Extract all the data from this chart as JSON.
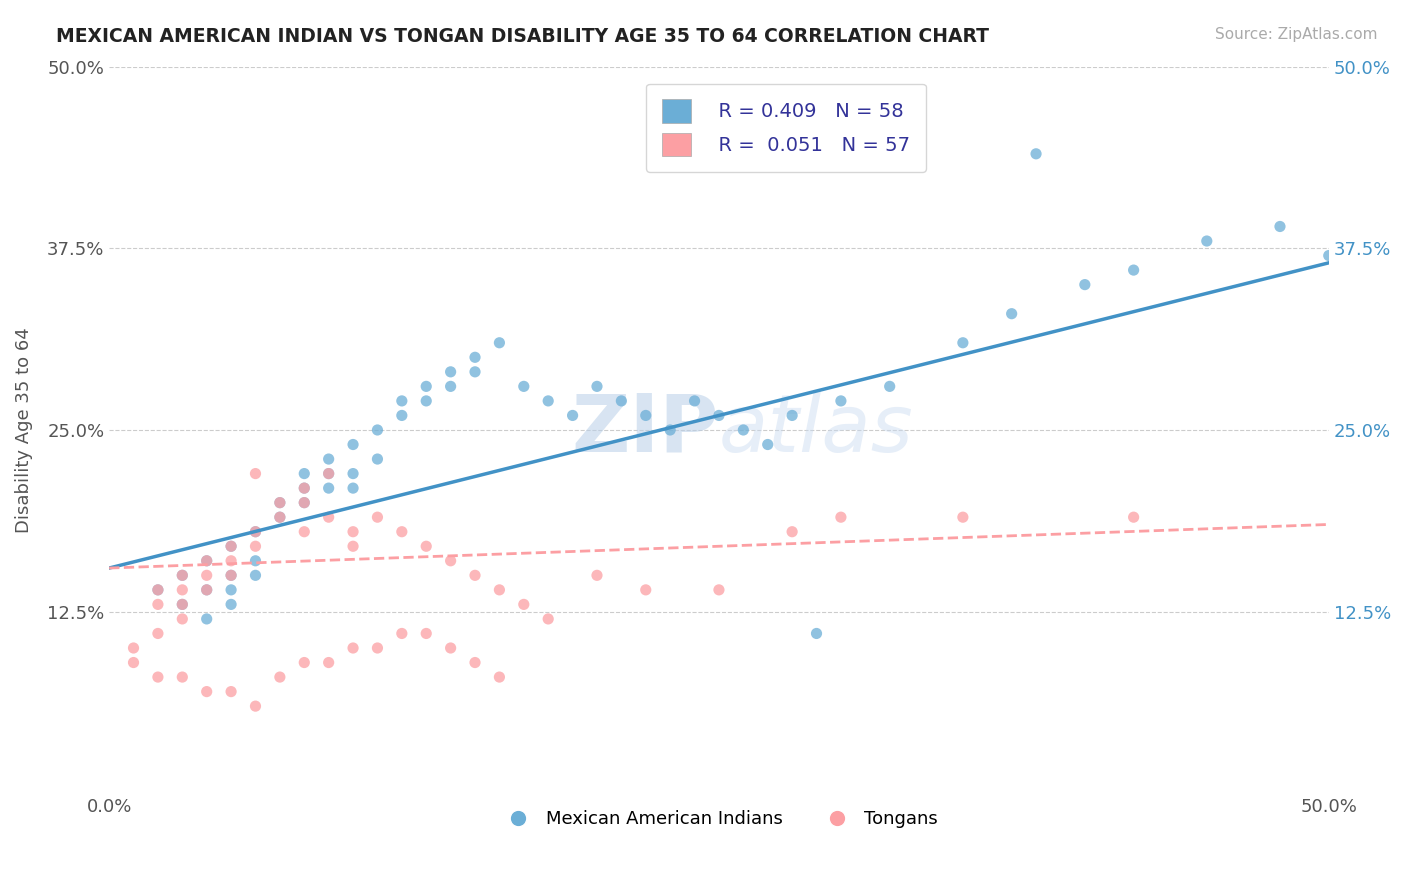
{
  "title": "MEXICAN AMERICAN INDIAN VS TONGAN DISABILITY AGE 35 TO 64 CORRELATION CHART",
  "source": "Source: ZipAtlas.com",
  "ylabel": "Disability Age 35 to 64",
  "xlim": [
    0.0,
    0.5
  ],
  "ylim": [
    0.0,
    0.5
  ],
  "xtick_labels": [
    "0.0%",
    "50.0%"
  ],
  "ytick_labels": [
    "12.5%",
    "25.0%",
    "37.5%",
    "50.0%"
  ],
  "ytick_positions": [
    0.125,
    0.25,
    0.375,
    0.5
  ],
  "grid_color": "#cccccc",
  "background_color": "#ffffff",
  "blue_color": "#6baed6",
  "pink_color": "#fc9fa3",
  "blue_line_color": "#4292c6",
  "legend_r_blue": "R = 0.409",
  "legend_n_blue": "N = 58",
  "legend_r_pink": "R =  0.051",
  "legend_n_pink": "N = 57",
  "legend_label_blue": "Mexican American Indians",
  "legend_label_pink": "Tongans",
  "watermark_zip": "ZIP",
  "watermark_atlas": "atlas",
  "blue_scatter_x": [
    0.02,
    0.03,
    0.03,
    0.04,
    0.04,
    0.04,
    0.05,
    0.05,
    0.05,
    0.05,
    0.06,
    0.06,
    0.06,
    0.07,
    0.07,
    0.08,
    0.08,
    0.08,
    0.09,
    0.09,
    0.09,
    0.1,
    0.1,
    0.1,
    0.11,
    0.11,
    0.12,
    0.12,
    0.13,
    0.13,
    0.14,
    0.14,
    0.15,
    0.15,
    0.16,
    0.17,
    0.18,
    0.19,
    0.2,
    0.21,
    0.22,
    0.23,
    0.24,
    0.25,
    0.26,
    0.27,
    0.28,
    0.3,
    0.32,
    0.35,
    0.37,
    0.4,
    0.42,
    0.45,
    0.48,
    0.5,
    0.29,
    0.38
  ],
  "blue_scatter_y": [
    0.14,
    0.13,
    0.15,
    0.16,
    0.14,
    0.12,
    0.17,
    0.15,
    0.14,
    0.13,
    0.18,
    0.16,
    0.15,
    0.2,
    0.19,
    0.22,
    0.21,
    0.2,
    0.23,
    0.22,
    0.21,
    0.24,
    0.22,
    0.21,
    0.25,
    0.23,
    0.27,
    0.26,
    0.28,
    0.27,
    0.29,
    0.28,
    0.3,
    0.29,
    0.31,
    0.28,
    0.27,
    0.26,
    0.28,
    0.27,
    0.26,
    0.25,
    0.27,
    0.26,
    0.25,
    0.24,
    0.26,
    0.27,
    0.28,
    0.31,
    0.33,
    0.35,
    0.36,
    0.38,
    0.39,
    0.37,
    0.11,
    0.44
  ],
  "pink_scatter_x": [
    0.01,
    0.01,
    0.02,
    0.02,
    0.02,
    0.03,
    0.03,
    0.03,
    0.03,
    0.04,
    0.04,
    0.04,
    0.05,
    0.05,
    0.05,
    0.06,
    0.06,
    0.06,
    0.07,
    0.07,
    0.08,
    0.08,
    0.08,
    0.09,
    0.09,
    0.1,
    0.1,
    0.11,
    0.12,
    0.13,
    0.14,
    0.15,
    0.16,
    0.17,
    0.18,
    0.2,
    0.22,
    0.25,
    0.28,
    0.3,
    0.35,
    0.42,
    0.02,
    0.03,
    0.04,
    0.05,
    0.06,
    0.07,
    0.08,
    0.09,
    0.1,
    0.11,
    0.12,
    0.13,
    0.14,
    0.15,
    0.16
  ],
  "pink_scatter_y": [
    0.1,
    0.09,
    0.14,
    0.13,
    0.11,
    0.15,
    0.14,
    0.13,
    0.12,
    0.16,
    0.15,
    0.14,
    0.17,
    0.16,
    0.15,
    0.22,
    0.18,
    0.17,
    0.2,
    0.19,
    0.21,
    0.2,
    0.18,
    0.22,
    0.19,
    0.18,
    0.17,
    0.19,
    0.18,
    0.17,
    0.16,
    0.15,
    0.14,
    0.13,
    0.12,
    0.15,
    0.14,
    0.14,
    0.18,
    0.19,
    0.19,
    0.19,
    0.08,
    0.08,
    0.07,
    0.07,
    0.06,
    0.08,
    0.09,
    0.09,
    0.1,
    0.1,
    0.11,
    0.11,
    0.1,
    0.09,
    0.08
  ],
  "blue_line_x": [
    0.0,
    0.5
  ],
  "blue_line_y_start": 0.155,
  "blue_line_y_end": 0.365,
  "pink_line_x": [
    0.0,
    0.5
  ],
  "pink_line_y_start": 0.155,
  "pink_line_y_end": 0.185
}
